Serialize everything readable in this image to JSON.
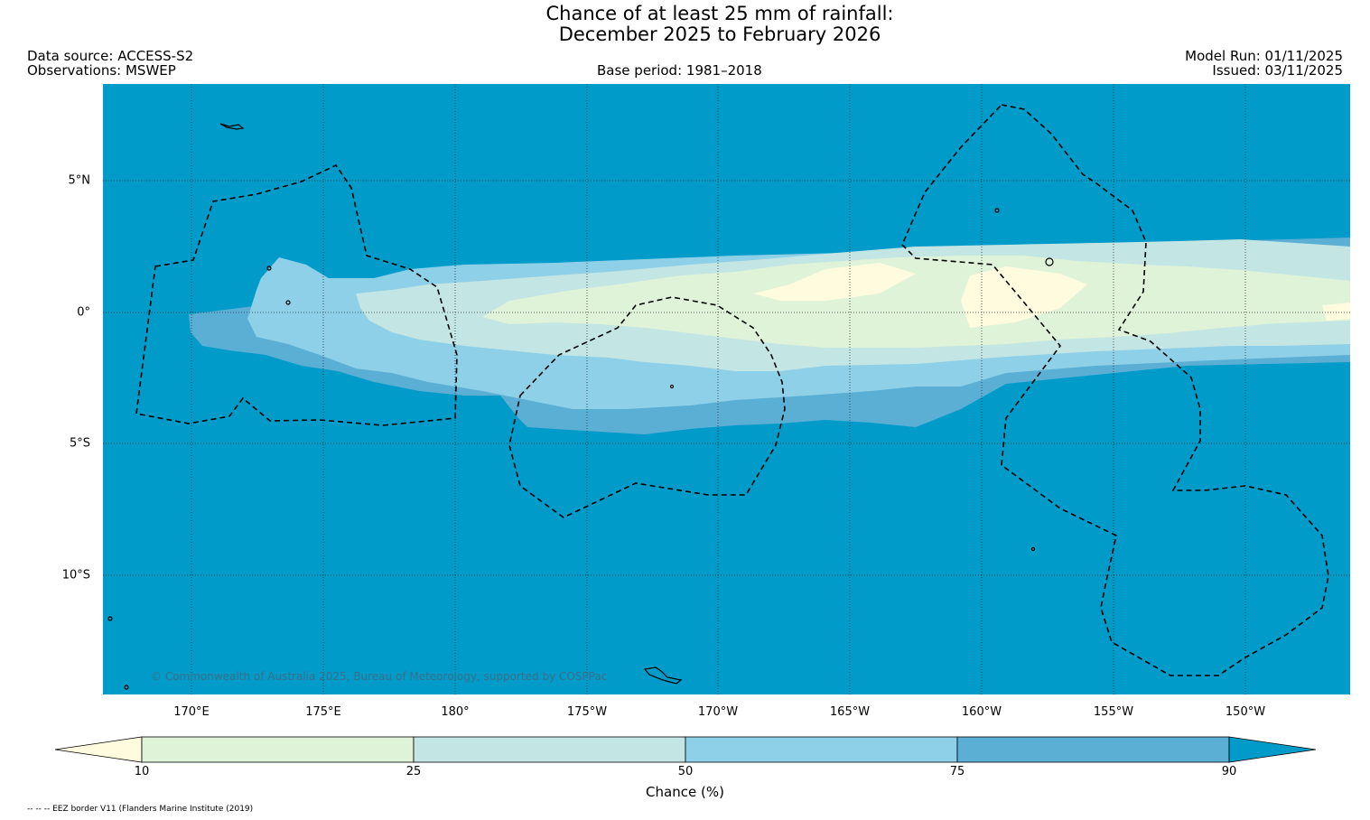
{
  "title": {
    "line1": "Chance of at least 25 mm of rainfall:",
    "line2": "December 2025 to February 2026"
  },
  "meta": {
    "data_source": "Data source: ACCESS-S2",
    "observations": "Observations: MSWEP",
    "base_period": "Base period: 1981–2018",
    "model_run": "Model Run: 01/11/2025",
    "issued": "Issued: 03/11/2025"
  },
  "map": {
    "lat_labels": [
      "5°N",
      "0°",
      "5°S",
      "10°S"
    ],
    "lon_labels": [
      "170°E",
      "175°E",
      "180°",
      "175°W",
      "170°W",
      "165°W",
      "160°W",
      "155°W",
      "150°W"
    ],
    "copyright": "© Commonwealth of Australia 2025, Bureau of Meteorology, supported by COSPPac",
    "ocean_color": "#009bc8"
  },
  "colorbar": {
    "ticks": [
      "10",
      "25",
      "50",
      "75",
      "90"
    ],
    "colors": [
      "#fffbde",
      "#dff3d8",
      "#c3e5e4",
      "#8dd0e8",
      "#5bafd5",
      "#009bc8"
    ],
    "label": "Chance (%)"
  },
  "footnote": "-- -- -- EEZ border V11 (Flanders Marine Institute (2019)"
}
